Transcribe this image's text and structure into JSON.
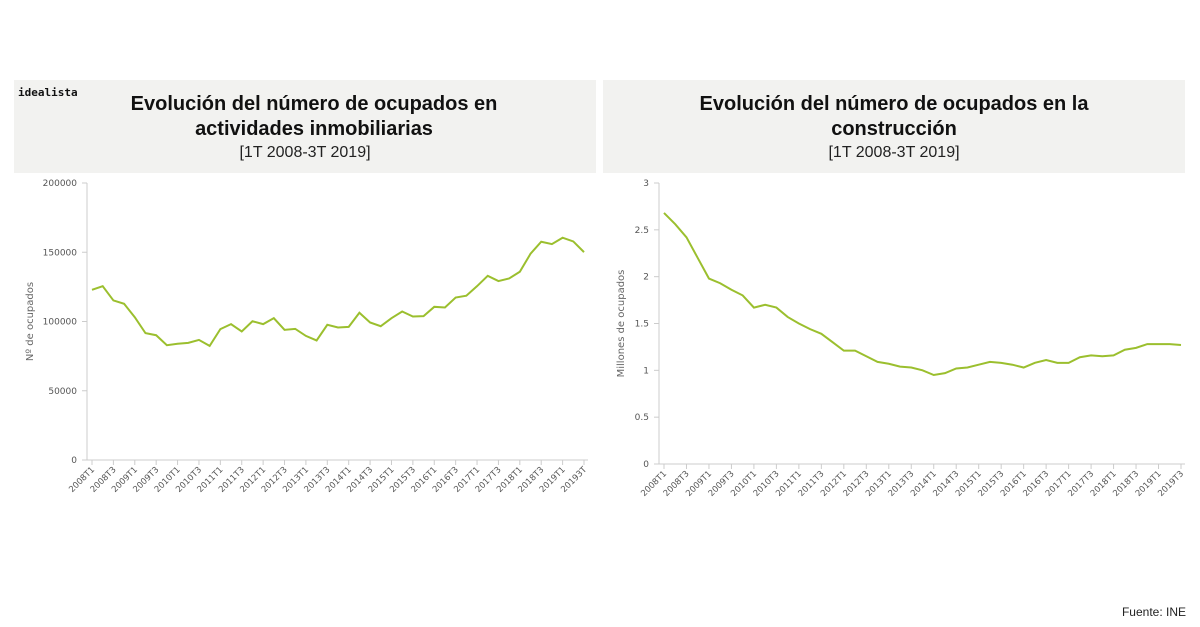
{
  "brand": "idealista",
  "source": "Fuente: INE",
  "line_color": "#9bbf2e",
  "chart_data": [
    {
      "type": "line",
      "title": "Evolución del número de ocupados en actividades inmobiliarias",
      "subtitle": "[1T 2008-3T 2019]",
      "ylabel": "Nº de ocupados",
      "xlabel": "",
      "ylim": [
        0,
        200000
      ],
      "yticks": [
        0,
        50000,
        100000,
        150000,
        200000
      ],
      "grid": false,
      "tick_labels": [
        "2008T1",
        "2008T3",
        "2009T1",
        "2009T3",
        "2010T1",
        "2010T3",
        "2011T1",
        "2011T3",
        "2012T1",
        "2012T3",
        "2013T1",
        "2013T3",
        "2014T1",
        "2014T3",
        "2015T1",
        "2015T3",
        "2016T1",
        "2016T3",
        "2017T1",
        "2017T3",
        "2018T1",
        "2018T3",
        "2019T1",
        "20193T"
      ],
      "values": [
        122900,
        125500,
        115200,
        112800,
        103100,
        91600,
        90100,
        82900,
        83900,
        84600,
        86700,
        82400,
        94500,
        98100,
        92800,
        100200,
        98100,
        102400,
        94000,
        94700,
        89600,
        86300,
        97600,
        95700,
        96100,
        106300,
        99300,
        96600,
        102400,
        107200,
        103600,
        103900,
        110600,
        110100,
        117300,
        118600,
        125500,
        133000,
        129200,
        131100,
        135900,
        148900,
        157600,
        155900,
        160500,
        157800,
        150100
      ]
    },
    {
      "type": "line",
      "title": "Evolución del número de ocupados en la construcción",
      "subtitle": "[1T 2008-3T 2019]",
      "ylabel": "Millones de ocupados",
      "xlabel": "",
      "ylim": [
        0,
        3
      ],
      "yticks": [
        0,
        0.5,
        1,
        1.5,
        2,
        2.5,
        3
      ],
      "grid": false,
      "tick_labels": [
        "2008T1",
        "2008T3",
        "2009T1",
        "2009T3",
        "2010T1",
        "2010T3",
        "2011T1",
        "2011T3",
        "2012T1",
        "2012T3",
        "2013T1",
        "2013T3",
        "2014T1",
        "2014T3",
        "2015T1",
        "2015T3",
        "2016T1",
        "2016T3",
        "2017T1",
        "2017T3",
        "2018T1",
        "2018T3",
        "2019T1",
        "2019T3"
      ],
      "values": [
        2.68,
        2.56,
        2.42,
        2.2,
        1.98,
        1.93,
        1.86,
        1.8,
        1.67,
        1.7,
        1.67,
        1.57,
        1.5,
        1.44,
        1.39,
        1.3,
        1.21,
        1.21,
        1.15,
        1.09,
        1.07,
        1.04,
        1.03,
        1.0,
        0.95,
        0.97,
        1.02,
        1.03,
        1.06,
        1.09,
        1.08,
        1.06,
        1.03,
        1.08,
        1.11,
        1.08,
        1.08,
        1.14,
        1.16,
        1.15,
        1.16,
        1.22,
        1.24,
        1.28,
        1.28,
        1.28,
        1.27
      ]
    }
  ]
}
